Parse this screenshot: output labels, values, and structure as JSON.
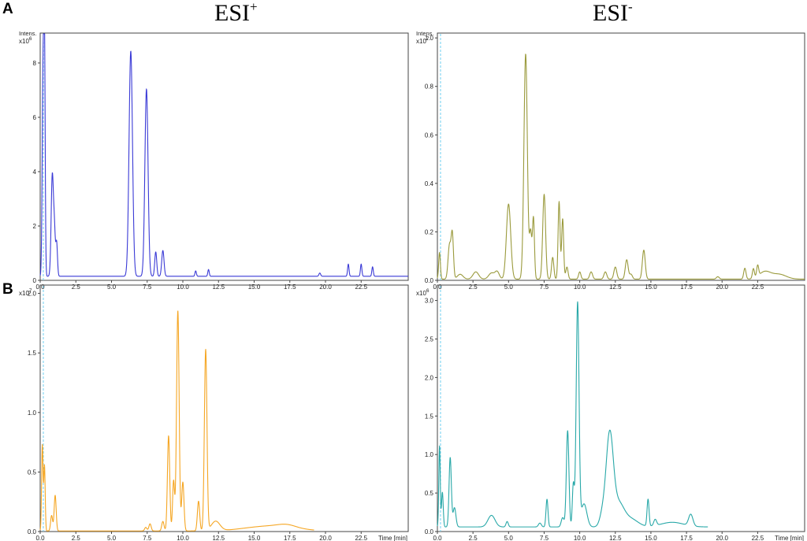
{
  "labels": {
    "panel_a": "A",
    "panel_b": "B",
    "col_left_base": "ESI",
    "col_left_sup": "+",
    "col_right_base": "ESI",
    "col_right_sup": "-"
  },
  "chart_data": [
    {
      "type": "line",
      "panel": "A",
      "column": "ESI+",
      "ylabel": "Intens.",
      "yexp": "x10",
      "yexp_power": "6",
      "xlim": [
        0,
        25.8
      ],
      "ylim": [
        0,
        9.1
      ],
      "xticks": [
        "0.0",
        "2.5",
        "5.0",
        "7.5",
        "10.0",
        "12.5",
        "15.0",
        "17.5",
        "20.0",
        "22.5"
      ],
      "xtick_values": [
        0,
        2.5,
        5,
        7.5,
        10,
        12.5,
        15,
        17.5,
        20,
        22.5
      ],
      "yticks": [
        "0",
        "2",
        "4",
        "6",
        "8"
      ],
      "ytick_values": [
        0,
        2,
        4,
        6,
        8
      ],
      "color": "#3a3ad6",
      "baseline": 0.15,
      "x_end": 25.8,
      "series": [
        {
          "peaks": [
            [
              0.2,
              7.2,
              0.06
            ],
            [
              0.3,
              8.1,
              0.05
            ],
            [
              0.85,
              3.75,
              0.08
            ],
            [
              1.0,
              1.45,
              0.06
            ],
            [
              1.15,
              1.25,
              0.06
            ],
            [
              6.35,
              8.3,
              0.12
            ],
            [
              7.45,
              6.9,
              0.11
            ],
            [
              8.1,
              0.9,
              0.07
            ],
            [
              8.6,
              0.95,
              0.08
            ],
            [
              10.9,
              0.2,
              0.05
            ],
            [
              11.8,
              0.25,
              0.05
            ],
            [
              19.6,
              0.12,
              0.06
            ],
            [
              21.6,
              0.45,
              0.05
            ],
            [
              22.5,
              0.45,
              0.05
            ],
            [
              23.3,
              0.35,
              0.05
            ]
          ]
        }
      ]
    },
    {
      "type": "line",
      "panel": "A",
      "column": "ESI-",
      "ylabel": "Intens.",
      "yexp": "x10",
      "yexp_power": "7",
      "xlim": [
        0,
        25.8
      ],
      "ylim": [
        0,
        1.02
      ],
      "xticks": [
        "0.0",
        "2.5",
        "5.0",
        "7.5",
        "10.0",
        "12.5",
        "15.0",
        "17.5",
        "20.0",
        "22.5"
      ],
      "xtick_values": [
        0,
        2.5,
        5,
        7.5,
        10,
        12.5,
        15,
        17.5,
        20,
        22.5
      ],
      "yticks": [
        "0.0",
        "0.2",
        "0.4",
        "0.6",
        "0.8",
        "1.0"
      ],
      "ytick_values": [
        0,
        0.2,
        0.4,
        0.6,
        0.8,
        1.0
      ],
      "color": "#9a9a3c",
      "baseline": 0.005,
      "x_end": 25.8,
      "series": [
        {
          "peaks": [
            [
              0.15,
              0.11,
              0.06
            ],
            [
              0.85,
              0.14,
              0.1
            ],
            [
              1.05,
              0.18,
              0.08
            ],
            [
              1.6,
              0.02,
              0.2
            ],
            [
              2.7,
              0.03,
              0.2
            ],
            [
              3.8,
              0.025,
              0.2
            ],
            [
              4.2,
              0.03,
              0.15
            ],
            [
              5.0,
              0.31,
              0.15
            ],
            [
              6.2,
              0.93,
              0.12
            ],
            [
              6.55,
              0.19,
              0.08
            ],
            [
              6.75,
              0.25,
              0.07
            ],
            [
              7.5,
              0.35,
              0.1
            ],
            [
              8.1,
              0.09,
              0.08
            ],
            [
              8.55,
              0.32,
              0.07
            ],
            [
              8.8,
              0.25,
              0.07
            ],
            [
              9.1,
              0.05,
              0.08
            ],
            [
              10.0,
              0.03,
              0.08
            ],
            [
              10.8,
              0.03,
              0.1
            ],
            [
              11.8,
              0.03,
              0.1
            ],
            [
              12.5,
              0.05,
              0.1
            ],
            [
              13.3,
              0.08,
              0.1
            ],
            [
              13.6,
              0.02,
              0.1
            ],
            [
              14.5,
              0.12,
              0.1
            ],
            [
              19.7,
              0.01,
              0.1
            ],
            [
              21.6,
              0.045,
              0.08
            ],
            [
              22.2,
              0.04,
              0.07
            ],
            [
              22.5,
              0.045,
              0.07
            ],
            [
              23.0,
              0.03,
              0.4
            ],
            [
              24.0,
              0.02,
              0.5
            ]
          ]
        }
      ]
    },
    {
      "type": "line",
      "panel": "B",
      "column": "ESI+",
      "ylabel": "",
      "yexp": "x10",
      "yexp_power": "7",
      "xlim": [
        0,
        25.8
      ],
      "ylim": [
        0,
        2.07
      ],
      "xticks": [
        "0.0",
        "2.5",
        "5.0",
        "7.5",
        "10.0",
        "12.5",
        "15.0",
        "17.5",
        "20.0",
        "22.5"
      ],
      "xtick_values": [
        0,
        2.5,
        5,
        7.5,
        10,
        12.5,
        15,
        17.5,
        20,
        22.5
      ],
      "xlabel": "Time [min]",
      "yticks": [
        "0.0",
        "0.5",
        "1.0",
        "1.5",
        "2.0"
      ],
      "ytick_values": [
        0,
        0.5,
        1.0,
        1.5,
        2.0
      ],
      "color": "#f5a623",
      "baseline": 0.005,
      "x_end": 19.2,
      "series": [
        {
          "peaks": [
            [
              0.15,
              0.72,
              0.05
            ],
            [
              0.3,
              0.55,
              0.05
            ],
            [
              0.8,
              0.13,
              0.07
            ],
            [
              1.05,
              0.3,
              0.07
            ],
            [
              7.4,
              0.03,
              0.08
            ],
            [
              7.7,
              0.06,
              0.08
            ],
            [
              8.6,
              0.08,
              0.08
            ],
            [
              9.0,
              0.8,
              0.08
            ],
            [
              9.35,
              0.42,
              0.07
            ],
            [
              9.65,
              1.85,
              0.09
            ],
            [
              10.0,
              0.41,
              0.08
            ],
            [
              11.1,
              0.25,
              0.08
            ],
            [
              11.6,
              1.52,
              0.09
            ],
            [
              12.3,
              0.08,
              0.3
            ],
            [
              14.5,
              0.01,
              1.2
            ],
            [
              16.5,
              0.04,
              1.5
            ],
            [
              17.3,
              0.02,
              0.6
            ]
          ]
        }
      ]
    },
    {
      "type": "line",
      "panel": "B",
      "column": "ESI-",
      "ylabel": "",
      "yexp": "x10",
      "yexp_power": "6",
      "xlim": [
        0,
        25.8
      ],
      "ylim": [
        0,
        3.2
      ],
      "xticks": [
        "0.0",
        "2.5",
        "5.0",
        "7.5",
        "10.0",
        "12.5",
        "15.0",
        "17.5",
        "20.0",
        "22.5"
      ],
      "xtick_values": [
        0,
        2.5,
        5,
        7.5,
        10,
        12.5,
        15,
        17.5,
        20,
        22.5
      ],
      "xlabel": "Time [min]",
      "yticks": [
        "0.0",
        "0.5",
        "1.0",
        "1.5",
        "2.0",
        "2.5",
        "3.0"
      ],
      "ytick_values": [
        0,
        0.5,
        1.0,
        1.5,
        2.0,
        2.5,
        3.0
      ],
      "color": "#28a8a8",
      "baseline": 0.06,
      "x_end": 19.0,
      "series": [
        {
          "peaks": [
            [
              0.15,
              1.05,
              0.05
            ],
            [
              0.35,
              0.45,
              0.06
            ],
            [
              0.9,
              0.9,
              0.08
            ],
            [
              1.2,
              0.25,
              0.1
            ],
            [
              3.8,
              0.15,
              0.25
            ],
            [
              4.9,
              0.07,
              0.08
            ],
            [
              7.2,
              0.05,
              0.1
            ],
            [
              7.7,
              0.36,
              0.07
            ],
            [
              8.8,
              0.12,
              0.1
            ],
            [
              9.15,
              1.25,
              0.09
            ],
            [
              9.55,
              0.55,
              0.07
            ],
            [
              9.85,
              2.9,
              0.1
            ],
            [
              10.3,
              0.3,
              0.2
            ],
            [
              11.6,
              0.15,
              0.2
            ],
            [
              12.1,
              1.15,
              0.25
            ],
            [
              12.7,
              0.3,
              0.4
            ],
            [
              13.6,
              0.1,
              0.5
            ],
            [
              14.8,
              0.35,
              0.07
            ],
            [
              15.3,
              0.08,
              0.1
            ],
            [
              17.8,
              0.15,
              0.15
            ],
            [
              16.5,
              0.06,
              0.8
            ]
          ]
        }
      ]
    }
  ]
}
